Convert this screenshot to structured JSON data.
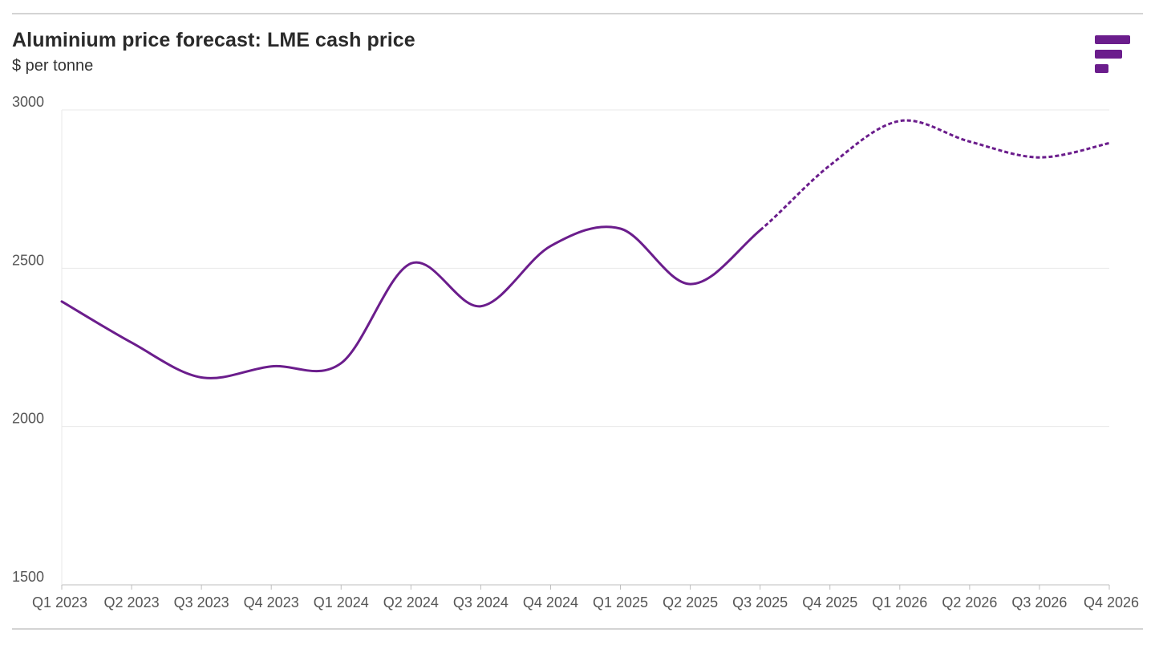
{
  "chart_data": {
    "type": "line",
    "title": "Aluminium price forecast: LME cash price",
    "subtitle": "$ per tonne",
    "categories": [
      "Q1 2023",
      "Q2 2023",
      "Q3 2023",
      "Q4 2023",
      "Q1 2024",
      "Q2 2024",
      "Q3 2024",
      "Q4 2024",
      "Q1 2025",
      "Q2 2025",
      "Q3 2025",
      "Q4 2025",
      "Q1 2026",
      "Q2 2026",
      "Q3 2026",
      "Q4 2026"
    ],
    "series": [
      {
        "values": [
          2395,
          2265,
          2155,
          2190,
          2200,
          2515,
          2380,
          2570,
          2625,
          2450,
          2620,
          2825,
          2965,
          2900,
          2850,
          2895
        ],
        "forecast_from_index": 10,
        "color": "#6b1d8c"
      }
    ],
    "yticks": [
      "3000",
      "2500",
      "2000",
      "1500"
    ],
    "ylim": [
      1500,
      3000
    ],
    "grid": true,
    "legend": "none"
  },
  "brand": {
    "accent": "#6b1d8c",
    "logo_icon": "brand-bars-icon"
  }
}
